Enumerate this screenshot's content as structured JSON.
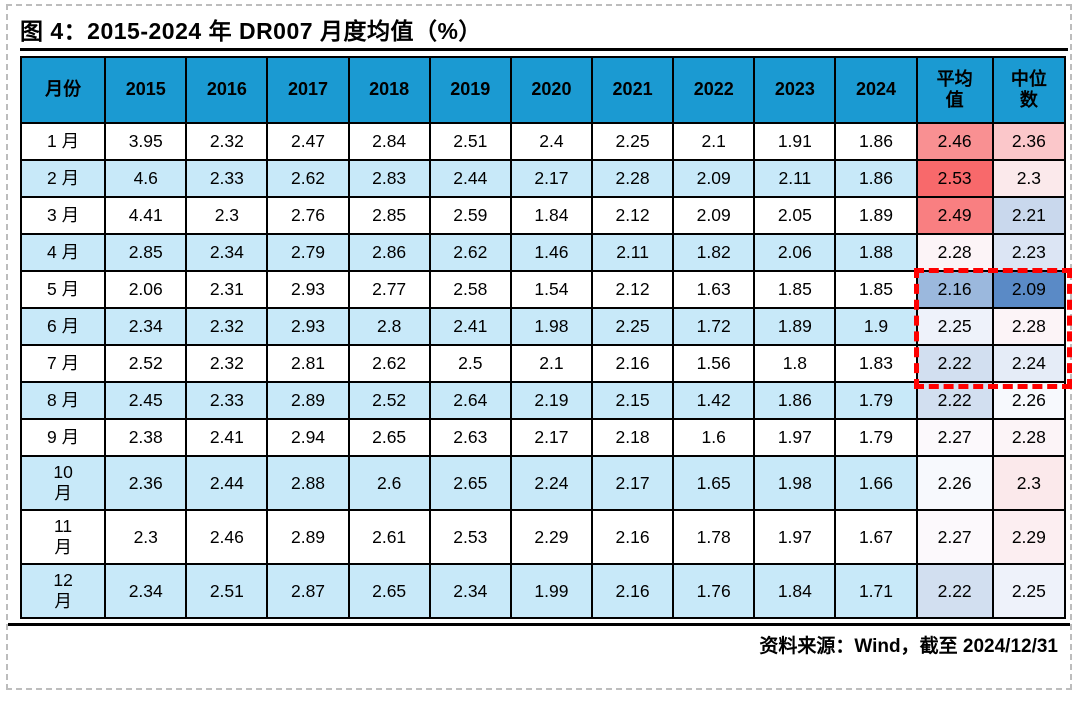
{
  "chart_data": {
    "type": "table",
    "title": "图 4：2015-2024 年 DR007 月度均值（%）",
    "source": "资料来源：Wind，截至 2024/12/31",
    "header": {
      "month": "月份",
      "years": [
        "2015",
        "2016",
        "2017",
        "2018",
        "2019",
        "2020",
        "2021",
        "2022",
        "2023",
        "2024"
      ],
      "avg": "平均\n值",
      "median": "中位\n数"
    },
    "rows": [
      {
        "month": "1 月",
        "values": [
          "3.95",
          "2.32",
          "2.47",
          "2.84",
          "2.51",
          "2.4",
          "2.25",
          "2.1",
          "1.91",
          "1.86"
        ],
        "avg": "2.46",
        "median": "2.36"
      },
      {
        "month": "2 月",
        "values": [
          "4.6",
          "2.33",
          "2.62",
          "2.83",
          "2.44",
          "2.17",
          "2.28",
          "2.09",
          "2.11",
          "1.86"
        ],
        "avg": "2.53",
        "median": "2.3"
      },
      {
        "month": "3 月",
        "values": [
          "4.41",
          "2.3",
          "2.76",
          "2.85",
          "2.59",
          "1.84",
          "2.12",
          "2.09",
          "2.05",
          "1.89"
        ],
        "avg": "2.49",
        "median": "2.21"
      },
      {
        "month": "4 月",
        "values": [
          "2.85",
          "2.34",
          "2.79",
          "2.86",
          "2.62",
          "1.46",
          "2.11",
          "1.82",
          "2.06",
          "1.88"
        ],
        "avg": "2.28",
        "median": "2.23"
      },
      {
        "month": "5 月",
        "values": [
          "2.06",
          "2.31",
          "2.93",
          "2.77",
          "2.58",
          "1.54",
          "2.12",
          "1.63",
          "1.85",
          "1.85"
        ],
        "avg": "2.16",
        "median": "2.09"
      },
      {
        "month": "6 月",
        "values": [
          "2.34",
          "2.32",
          "2.93",
          "2.8",
          "2.41",
          "1.98",
          "2.25",
          "1.72",
          "1.89",
          "1.9"
        ],
        "avg": "2.25",
        "median": "2.28"
      },
      {
        "month": "7 月",
        "values": [
          "2.52",
          "2.32",
          "2.81",
          "2.62",
          "2.5",
          "2.1",
          "2.16",
          "1.56",
          "1.8",
          "1.83"
        ],
        "avg": "2.22",
        "median": "2.24"
      },
      {
        "month": "8 月",
        "values": [
          "2.45",
          "2.33",
          "2.89",
          "2.52",
          "2.64",
          "2.19",
          "2.15",
          "1.42",
          "1.86",
          "1.79"
        ],
        "avg": "2.22",
        "median": "2.26"
      },
      {
        "month": "9 月",
        "values": [
          "2.38",
          "2.41",
          "2.94",
          "2.65",
          "2.63",
          "2.17",
          "2.18",
          "1.6",
          "1.97",
          "1.79"
        ],
        "avg": "2.27",
        "median": "2.28"
      },
      {
        "month": "10\n月",
        "values": [
          "2.36",
          "2.44",
          "2.88",
          "2.6",
          "2.65",
          "2.24",
          "2.17",
          "1.65",
          "1.98",
          "1.66"
        ],
        "avg": "2.26",
        "median": "2.3"
      },
      {
        "month": "11\n月",
        "values": [
          "2.3",
          "2.46",
          "2.89",
          "2.61",
          "2.53",
          "2.29",
          "2.16",
          "1.78",
          "1.97",
          "1.67"
        ],
        "avg": "2.27",
        "median": "2.29"
      },
      {
        "month": "12\n月",
        "values": [
          "2.34",
          "2.51",
          "2.87",
          "2.65",
          "2.34",
          "1.99",
          "2.16",
          "1.76",
          "1.84",
          "1.71"
        ],
        "avg": "2.22",
        "median": "2.25"
      }
    ],
    "color_scale": {
      "applies_to": "avg and median columns",
      "min_value": 2.09,
      "mid_value": 2.265,
      "max_value": 2.53,
      "min_color": "#5A8AC6",
      "mid_color": "#FCFCFF",
      "max_color": "#F8696B"
    },
    "highlight_box": {
      "note": "red dashed rectangle around avg+median cells of rows 5月-7月",
      "start_row_index": 4,
      "end_row_index": 6,
      "color": "#FF0000"
    },
    "colors": {
      "header_bg": "#1B9AD2",
      "band_bg": "#C8E9F9",
      "grid": "#000000"
    },
    "layout": {
      "banding": "alternate rows light blue starting from 2月",
      "grid_on": true
    }
  }
}
